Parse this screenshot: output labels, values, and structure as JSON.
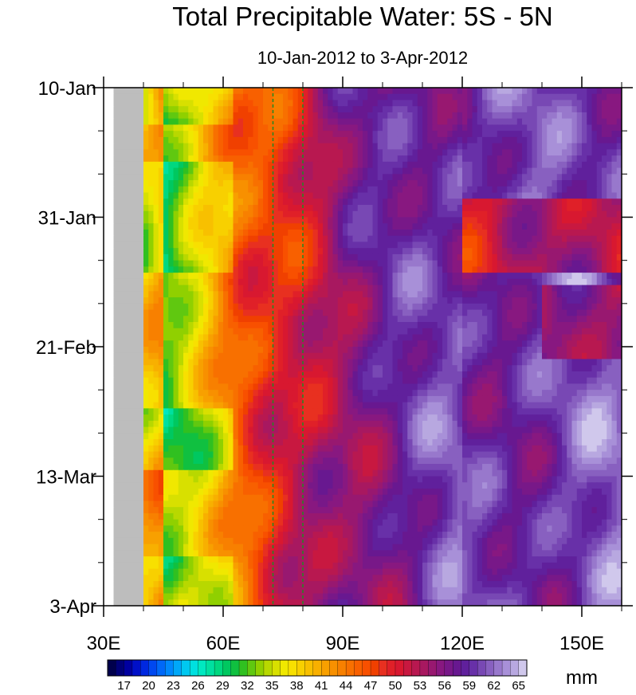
{
  "chart_data": {
    "type": "heatmap",
    "title": "Total Precipitable Water: 5S - 5N",
    "subtitle": "10-Jan-2012 to 3-Apr-2012",
    "x_axis": {
      "range": [
        30,
        160
      ],
      "ticks": [
        30,
        60,
        90,
        120,
        150
      ],
      "tick_labels": [
        "30E",
        "60E",
        "90E",
        "120E",
        "150E"
      ],
      "minor_step": 10
    },
    "y_axis": {
      "range_days": [
        0,
        84
      ],
      "tick_days": [
        0,
        21,
        42,
        63,
        84
      ],
      "tick_labels": [
        "10-Jan",
        "31-Jan",
        "21-Feb",
        "13-Mar",
        "3-Apr"
      ],
      "direction": "top-to-bottom",
      "minor_step_days": 7
    },
    "missing_band_lon": [
      32,
      40
    ],
    "reference_lines_lon": [
      72.5,
      80
    ],
    "colorbar": {
      "unit": "mm",
      "labels": [
        "17",
        "20",
        "23",
        "26",
        "29",
        "32",
        "35",
        "38",
        "41",
        "44",
        "47",
        "50",
        "53",
        "56",
        "59",
        "62",
        "65"
      ],
      "levels_min": 16,
      "levels_max": 65,
      "levels_step": 1,
      "colors": [
        "#00004c",
        "#000078",
        "#0000a0",
        "#0010c8",
        "#0028e0",
        "#0048f0",
        "#0068f8",
        "#0088fc",
        "#00a8f8",
        "#00c8f0",
        "#00e0e0",
        "#00e8c0",
        "#00e0a0",
        "#00d880",
        "#00c860",
        "#10c040",
        "#30c020",
        "#60c810",
        "#90d000",
        "#b8d800",
        "#d8e000",
        "#f0e800",
        "#f8e000",
        "#f8d000",
        "#f8c000",
        "#f8b000",
        "#f8a000",
        "#f89000",
        "#f88000",
        "#f87000",
        "#f86000",
        "#f85000",
        "#f04000",
        "#e83020",
        "#e02028",
        "#d81830",
        "#c81840",
        "#b81850",
        "#a81860",
        "#981870",
        "#881880",
        "#781888",
        "#681890",
        "#60209c",
        "#6830a8",
        "#7848b4",
        "#8860c0",
        "#9878cc",
        "#a890d8",
        "#b8a8e0",
        "#d0c8ec"
      ]
    }
  }
}
